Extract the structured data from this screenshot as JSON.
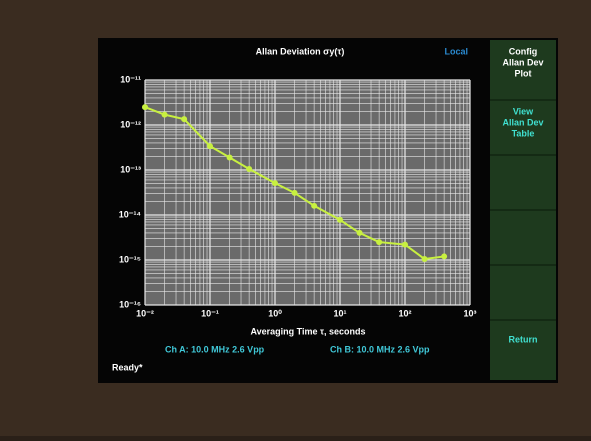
{
  "chart_data": {
    "type": "line",
    "title": "Allan Deviation σy(τ)",
    "x_label": "Averaging Time τ, seconds",
    "x": [
      0.01,
      0.02,
      0.04,
      0.1,
      0.2,
      0.4,
      1,
      2,
      4,
      10,
      20,
      40,
      100,
      200,
      400
    ],
    "values": [
      2.5e-12,
      1.7e-12,
      1.35e-12,
      3.4e-13,
      1.9e-13,
      1.05e-13,
      5.1e-14,
      3.1e-14,
      1.6e-14,
      7.8e-15,
      4e-15,
      2.5e-15,
      2.2e-15,
      1.05e-15,
      1.2e-15
    ],
    "color": "#c8f040",
    "log_x": true,
    "log_y": true,
    "grid": true,
    "xlim": [
      0.01,
      1000
    ],
    "xticks": [
      {
        "value": 0.01,
        "label": "10⁻²"
      },
      {
        "value": 0.1,
        "label": "10⁻¹"
      },
      {
        "value": 1,
        "label": "10⁰"
      },
      {
        "value": 10,
        "label": "10¹"
      },
      {
        "value": 100,
        "label": "10²"
      },
      {
        "value": 1000,
        "label": "10³"
      }
    ],
    "ylim": [
      1e-16,
      1e-11
    ],
    "yticks": [
      {
        "value": 1e-16,
        "label": "10⁻¹⁶"
      },
      {
        "value": 1e-15,
        "label": "10⁻¹⁵"
      },
      {
        "value": 1e-14,
        "label": "10⁻¹⁴"
      },
      {
        "value": 1e-13,
        "label": "10⁻¹³"
      },
      {
        "value": 1e-12,
        "label": "10⁻¹²"
      },
      {
        "value": 1e-11,
        "label": "10⁻¹¹"
      }
    ]
  },
  "screen": {
    "mode": "Local",
    "channel_a": "Ch A: 10.0 MHz 2.6 Vpp",
    "channel_b": "Ch B: 10.0 MHz 2.6 Vpp",
    "status": "Ready*",
    "buttons": [
      [
        "Config",
        "Allan Dev",
        "Plot"
      ],
      [
        "View",
        "Allan Dev",
        "Table"
      ],
      [
        "Return"
      ]
    ]
  }
}
